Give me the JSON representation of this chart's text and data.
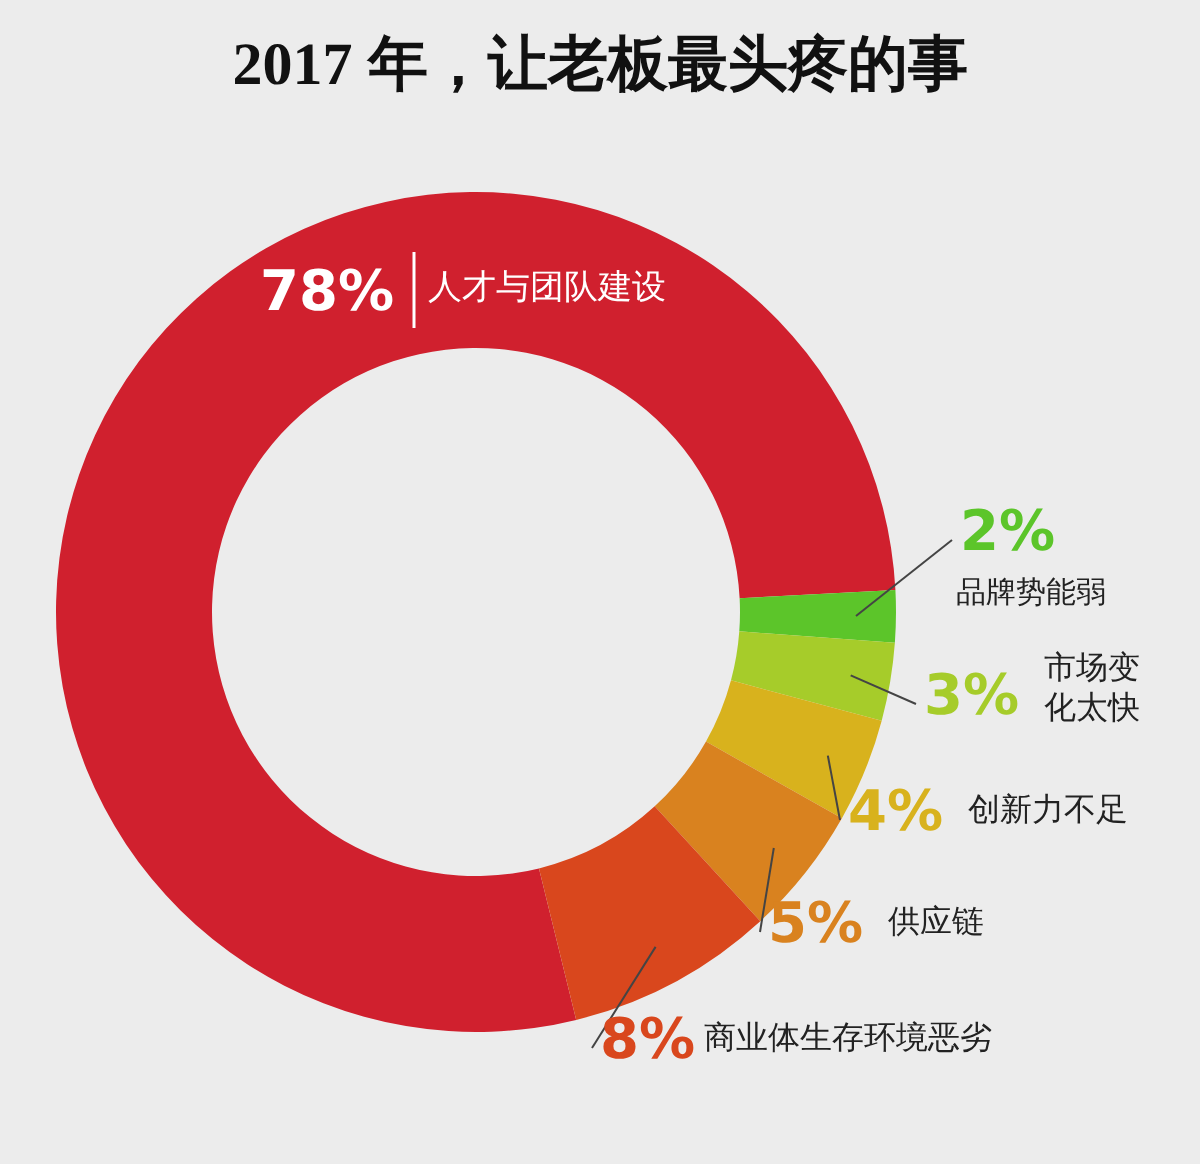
{
  "chart_data": {
    "type": "donut",
    "title": "2017 年，让老板最头疼的事",
    "categories": [
      "人才与团队建设",
      "品牌势能弱",
      "市场变化太快",
      "创新力不足",
      "供应链",
      "商业体生存环境恶劣"
    ],
    "values": [
      78,
      2,
      3,
      4,
      5,
      8
    ],
    "value_labels": [
      "78%",
      "2%",
      "3%",
      "4%",
      "5%",
      "8%"
    ],
    "colors": [
      "#d0202e",
      "#5cc52a",
      "#a6cc2a",
      "#d8b21d",
      "#d9821f",
      "#d9471d"
    ]
  }
}
